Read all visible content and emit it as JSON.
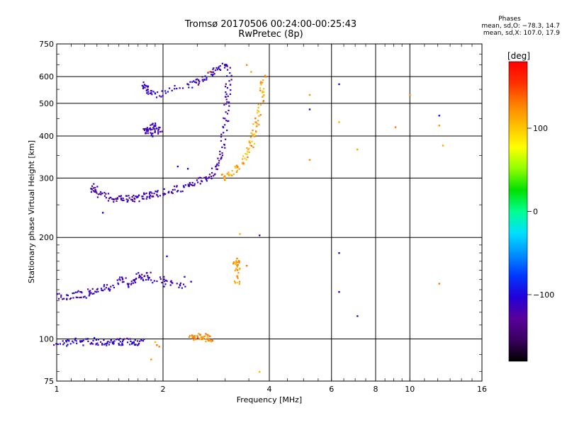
{
  "title": {
    "line1": "Tromsø 20170506 00:24:00-00:25:43",
    "line2": "RwPretec (8p)"
  },
  "phases_stats": {
    "heading": "Phases",
    "line_o": "mean, sd,O: −78.3, 14.7",
    "line_x": "mean, sd,X: 107.0, 17.9"
  },
  "colorbar": {
    "label": "[deg]",
    "ticks": [
      "100",
      "0",
      "−100"
    ],
    "tick_values": [
      100,
      0,
      -100
    ],
    "range": [
      -180,
      180
    ],
    "colors": [
      "#000000",
      "#3a0060",
      "#5a009a",
      "#2200d8",
      "#0038ff",
      "#0090ff",
      "#00e0ff",
      "#00ff90",
      "#00e000",
      "#90ff00",
      "#ffff00",
      "#ffc000",
      "#ff8000",
      "#ff3000",
      "#ff0000"
    ]
  },
  "chart_data": {
    "type": "scatter",
    "title": "Tromsø 20170506 00:24:00-00:25:43",
    "subtitle": "RwPretec (8p)",
    "xlabel": "Frequency [MHz]",
    "ylabel": "Stationary phase Virtual Height [km]",
    "x_scale": "log",
    "y_scale": "log",
    "xlim": [
      1,
      16
    ],
    "ylim": [
      75,
      750
    ],
    "x_ticks": [
      1,
      2,
      4,
      6,
      8,
      10,
      16
    ],
    "x_tick_labels": [
      "1",
      "2",
      "4",
      "6",
      "8",
      "10",
      "16"
    ],
    "y_ticks": [
      75,
      100,
      200,
      300,
      400,
      500,
      600,
      750
    ],
    "y_tick_labels": [
      "75",
      "100",
      "200",
      "300",
      "400",
      "500",
      "600",
      "750"
    ],
    "major_x_grid": [
      2,
      4,
      6,
      8,
      10
    ],
    "major_y_grid": [
      100,
      200,
      300,
      400,
      500,
      600
    ],
    "grid": true,
    "color_quantity": "Phase [deg]",
    "series": [
      {
        "type": "trace",
        "phase": -110,
        "points": [
          [
            1.0,
            98
          ],
          [
            1.05,
            97
          ],
          [
            1.1,
            98
          ],
          [
            1.15,
            99
          ],
          [
            1.2,
            98
          ],
          [
            1.25,
            99
          ],
          [
            1.3,
            98
          ],
          [
            1.35,
            98
          ],
          [
            1.4,
            98
          ],
          [
            1.45,
            98
          ],
          [
            1.5,
            98
          ],
          [
            1.55,
            98
          ],
          [
            1.6,
            98
          ],
          [
            1.65,
            98
          ],
          [
            1.7,
            98
          ],
          [
            1.75,
            98
          ]
        ]
      },
      {
        "type": "trace",
        "phase": -112,
        "points": [
          [
            1.0,
            133
          ],
          [
            1.05,
            132
          ],
          [
            1.1,
            134
          ],
          [
            1.15,
            136
          ],
          [
            1.2,
            135
          ],
          [
            1.25,
            138
          ],
          [
            1.3,
            140
          ],
          [
            1.35,
            142
          ],
          [
            1.4,
            141
          ],
          [
            1.5,
            148
          ],
          [
            1.55,
            150
          ],
          [
            1.6,
            145
          ],
          [
            1.65,
            150
          ],
          [
            1.7,
            154
          ],
          [
            1.75,
            152
          ],
          [
            1.8,
            156
          ],
          [
            1.85,
            150
          ],
          [
            2.0,
            150
          ],
          [
            2.05,
            146
          ],
          [
            2.2,
            144
          ],
          [
            2.3,
            145
          ]
        ]
      },
      {
        "type": "trace",
        "phase": -118,
        "points": [
          [
            1.25,
            285
          ],
          [
            1.28,
            278
          ],
          [
            1.3,
            272
          ],
          [
            1.35,
            266
          ],
          [
            1.4,
            263
          ],
          [
            1.45,
            261
          ],
          [
            1.5,
            260
          ],
          [
            1.55,
            260
          ],
          [
            1.6,
            260
          ],
          [
            1.65,
            261
          ],
          [
            1.7,
            262
          ],
          [
            1.75,
            264
          ],
          [
            1.8,
            266
          ],
          [
            1.85,
            268
          ],
          [
            1.9,
            270
          ],
          [
            2.0,
            272
          ],
          [
            2.1,
            275
          ],
          [
            2.2,
            278
          ],
          [
            2.3,
            282
          ],
          [
            2.4,
            286
          ],
          [
            2.5,
            292
          ],
          [
            2.6,
            298
          ],
          [
            2.7,
            305
          ],
          [
            2.8,
            315
          ],
          [
            2.85,
            330
          ],
          [
            2.9,
            350
          ],
          [
            2.95,
            380
          ],
          [
            3.0,
            420
          ],
          [
            3.02,
            460
          ],
          [
            3.04,
            500
          ],
          [
            3.05,
            540
          ],
          [
            3.06,
            580
          ],
          [
            3.08,
            620
          ]
        ]
      },
      {
        "type": "trace",
        "phase": -115,
        "points": [
          [
            1.78,
            420
          ],
          [
            1.8,
            410
          ],
          [
            1.82,
            415
          ],
          [
            1.84,
            405
          ],
          [
            1.86,
            425
          ],
          [
            1.88,
            430
          ],
          [
            1.9,
            412
          ],
          [
            1.92,
            420
          ],
          [
            2.0,
            418
          ]
        ]
      },
      {
        "type": "trace",
        "phase": -113,
        "points": [
          [
            1.75,
            570
          ],
          [
            1.78,
            560
          ],
          [
            1.8,
            550
          ],
          [
            1.85,
            540
          ],
          [
            1.9,
            530
          ],
          [
            2.05,
            540
          ],
          [
            2.3,
            560
          ],
          [
            2.4,
            570
          ],
          [
            2.5,
            580
          ],
          [
            2.6,
            590
          ],
          [
            2.7,
            610
          ],
          [
            2.8,
            620
          ],
          [
            2.9,
            640
          ],
          [
            3.0,
            655
          ],
          [
            3.05,
            650
          ]
        ]
      },
      {
        "type": "trace",
        "phase": 115,
        "points": [
          [
            2.95,
            300
          ],
          [
            3.0,
            305
          ],
          [
            3.1,
            310
          ],
          [
            3.2,
            318
          ],
          [
            3.3,
            328
          ],
          [
            3.4,
            340
          ],
          [
            3.5,
            360
          ],
          [
            3.55,
            380
          ],
          [
            3.6,
            400
          ],
          [
            3.65,
            420
          ],
          [
            3.7,
            450
          ],
          [
            3.75,
            480
          ],
          [
            3.8,
            520
          ],
          [
            3.82,
            560
          ],
          [
            3.84,
            600
          ]
        ]
      },
      {
        "type": "trace",
        "phase": 125,
        "points": [
          [
            2.4,
            100
          ],
          [
            2.45,
            101
          ],
          [
            2.5,
            100
          ],
          [
            2.55,
            101
          ],
          [
            2.6,
            102
          ],
          [
            2.65,
            101
          ],
          [
            2.7,
            100
          ],
          [
            2.75,
            101
          ]
        ]
      },
      {
        "type": "trace",
        "phase": 115,
        "points": [
          [
            3.2,
            160
          ],
          [
            3.22,
            168
          ],
          [
            3.24,
            172
          ],
          [
            3.26,
            164
          ],
          [
            3.2,
            150
          ],
          [
            3.25,
            148
          ]
        ]
      },
      {
        "type": "points",
        "phase": 120,
        "points": [
          [
            1.9,
            98
          ],
          [
            1.92,
            96
          ],
          [
            1.95,
            95
          ],
          [
            1.85,
            87
          ],
          [
            3.75,
            80
          ],
          [
            3.45,
            165
          ],
          [
            3.45,
            650
          ],
          [
            3.55,
            620
          ],
          [
            3.9,
            600
          ],
          [
            3.3,
            205
          ],
          [
            5.2,
            530
          ],
          [
            5.2,
            340
          ],
          [
            6.3,
            440
          ],
          [
            7.1,
            365
          ],
          [
            9.1,
            425
          ],
          [
            10.0,
            530
          ],
          [
            12.1,
            430
          ],
          [
            12.4,
            375
          ],
          [
            12.1,
            146
          ],
          [
            2.7,
            620
          ]
        ]
      },
      {
        "type": "points",
        "phase": -100,
        "points": [
          [
            2.05,
            176
          ],
          [
            2.3,
            153
          ],
          [
            2.4,
            148
          ],
          [
            3.75,
            203
          ],
          [
            5.2,
            480
          ],
          [
            6.3,
            570
          ],
          [
            6.3,
            138
          ],
          [
            7.1,
            117
          ],
          [
            12.1,
            460
          ],
          [
            6.3,
            180
          ],
          [
            1.35,
            237
          ],
          [
            2.2,
            325
          ],
          [
            2.35,
            320
          ]
        ]
      }
    ]
  }
}
